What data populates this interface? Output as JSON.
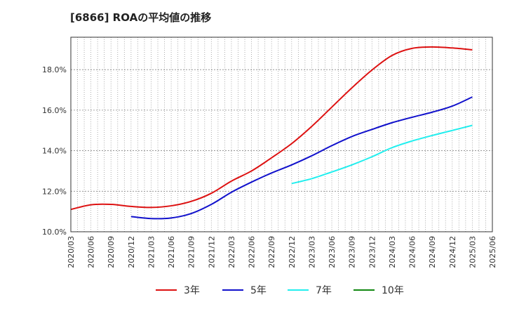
{
  "chart_data": {
    "type": "line",
    "title": "[6866]  ROAの平均値の推移",
    "xlabel": "",
    "ylabel": "",
    "x": [
      "2020/03",
      "2020/06",
      "2020/09",
      "2020/12",
      "2021/03",
      "2021/06",
      "2021/09",
      "2021/12",
      "2022/03",
      "2022/06",
      "2022/09",
      "2022/12",
      "2023/03",
      "2023/06",
      "2023/09",
      "2023/12",
      "2024/03",
      "2024/06",
      "2024/09",
      "2024/12",
      "2025/03",
      "2025/06"
    ],
    "y_ticks": [
      "10.0%",
      "12.0%",
      "14.0%",
      "16.0%",
      "18.0%"
    ],
    "ylim": [
      10.0,
      19.6
    ],
    "grid": true,
    "legend_position": "bottom",
    "series": [
      {
        "name": "3年",
        "color": "#dd1111",
        "values": [
          11.1,
          11.33,
          11.35,
          11.25,
          11.2,
          11.28,
          11.5,
          11.9,
          12.5,
          13.0,
          13.65,
          14.35,
          15.2,
          16.15,
          17.1,
          17.98,
          18.7,
          19.05,
          19.12,
          19.07,
          18.98,
          null
        ]
      },
      {
        "name": "5年",
        "color": "#1111cc",
        "values": [
          null,
          null,
          null,
          10.75,
          10.65,
          10.68,
          10.9,
          11.35,
          11.95,
          12.45,
          12.9,
          13.3,
          13.75,
          14.25,
          14.7,
          15.05,
          15.38,
          15.65,
          15.9,
          16.2,
          16.65,
          null
        ]
      },
      {
        "name": "7年",
        "color": "#22eeee",
        "values": [
          null,
          null,
          null,
          null,
          null,
          null,
          null,
          null,
          null,
          null,
          null,
          12.38,
          12.62,
          12.95,
          13.3,
          13.7,
          14.15,
          14.48,
          14.75,
          15.0,
          15.25,
          null
        ]
      },
      {
        "name": "10年",
        "color": "#118811",
        "values": [
          null,
          null,
          null,
          null,
          null,
          null,
          null,
          null,
          null,
          null,
          null,
          null,
          null,
          null,
          null,
          null,
          null,
          null,
          null,
          null,
          null,
          null
        ]
      }
    ]
  }
}
